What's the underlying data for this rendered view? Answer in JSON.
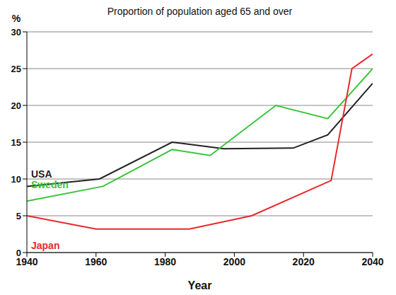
{
  "chart_data": {
    "type": "line",
    "title": "Proportion of population aged 65 and over",
    "x_label": "Year",
    "y_label": "%",
    "series": [
      {
        "name": "USA",
        "color": "#222222",
        "x": [
          1940,
          1961,
          1982,
          1997,
          2017,
          2027,
          2040
        ],
        "values": [
          9,
          10,
          15,
          14.1,
          14.2,
          16,
          23
        ]
      },
      {
        "name": "Sweden",
        "color": "#3cc43c",
        "x": [
          1940,
          1962,
          1982,
          1993,
          2012,
          2027,
          2040
        ],
        "values": [
          7,
          9,
          14,
          13.2,
          20,
          18.2,
          25
        ]
      },
      {
        "name": "Japan",
        "color": "#e8282d",
        "x": [
          1940,
          1960,
          1987,
          2005,
          2028,
          2034,
          2040
        ],
        "values": [
          5,
          3.2,
          3.2,
          5,
          9.8,
          25,
          27
        ]
      }
    ],
    "xlim": [
      1940,
      2040
    ],
    "xticks": [
      1940,
      1960,
      1980,
      2000,
      2020,
      2040
    ],
    "ylim": [
      0,
      30
    ],
    "yticks": [
      0,
      5,
      10,
      15,
      20,
      25,
      30
    ],
    "grid": true
  }
}
